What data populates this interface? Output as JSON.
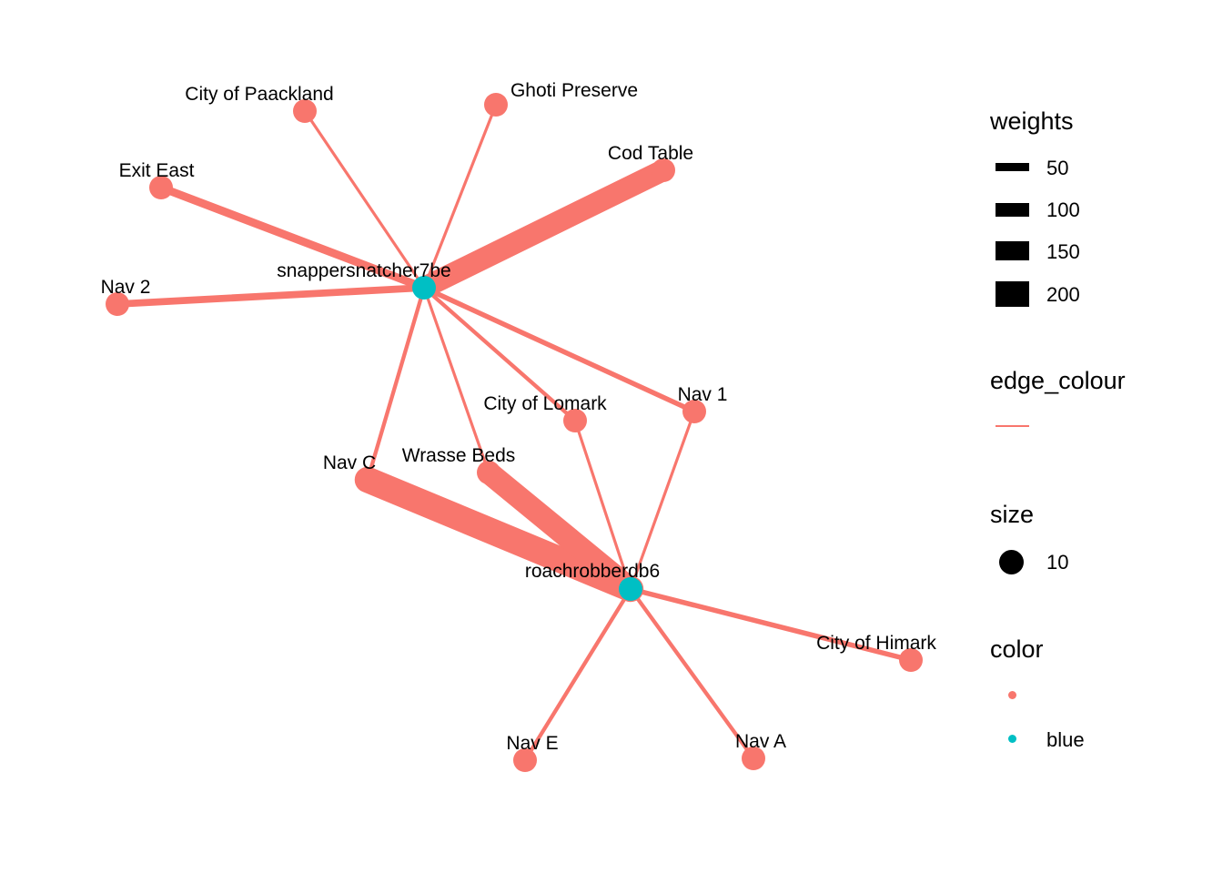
{
  "network": {
    "nodes": [
      {
        "id": "snappersnatcher7be",
        "label": "snappersnatcher7be",
        "color": "blue"
      },
      {
        "id": "roachrobberdb6",
        "label": "roachrobberdb6",
        "color": "blue"
      },
      {
        "id": "City of Paackland",
        "label": "City of Paackland",
        "color": ""
      },
      {
        "id": "Ghoti Preserve",
        "label": "Ghoti Preserve",
        "color": ""
      },
      {
        "id": "Exit East",
        "label": "Exit East",
        "color": ""
      },
      {
        "id": "Cod Table",
        "label": "Cod Table",
        "color": ""
      },
      {
        "id": "Nav 2",
        "label": "Nav 2",
        "color": ""
      },
      {
        "id": "City of Lomark",
        "label": "City of Lomark",
        "color": ""
      },
      {
        "id": "Nav 1",
        "label": "Nav 1",
        "color": ""
      },
      {
        "id": "Nav C",
        "label": "Nav C",
        "color": ""
      },
      {
        "id": "Wrasse Beds",
        "label": "Wrasse Beds",
        "color": ""
      },
      {
        "id": "City of Himark",
        "label": "City of Himark",
        "color": ""
      },
      {
        "id": "Nav E",
        "label": "Nav E",
        "color": ""
      },
      {
        "id": "Nav A",
        "label": "Nav A",
        "color": ""
      }
    ],
    "edges": [
      {
        "from": "snappersnatcher7be",
        "to": "City of Paackland",
        "weight": 10
      },
      {
        "from": "snappersnatcher7be",
        "to": "Ghoti Preserve",
        "weight": 10
      },
      {
        "from": "snappersnatcher7be",
        "to": "Exit East",
        "weight": 60
      },
      {
        "from": "snappersnatcher7be",
        "to": "Cod Table",
        "weight": 190
      },
      {
        "from": "snappersnatcher7be",
        "to": "Nav 2",
        "weight": 50
      },
      {
        "from": "snappersnatcher7be",
        "to": "City of Lomark",
        "weight": 20
      },
      {
        "from": "snappersnatcher7be",
        "to": "Nav 1",
        "weight": 30
      },
      {
        "from": "snappersnatcher7be",
        "to": "Nav C",
        "weight": 20
      },
      {
        "from": "snappersnatcher7be",
        "to": "Wrasse Beds",
        "weight": 10
      },
      {
        "from": "roachrobberdb6",
        "to": "Nav C",
        "weight": 230
      },
      {
        "from": "roachrobberdb6",
        "to": "Wrasse Beds",
        "weight": 200
      },
      {
        "from": "roachrobberdb6",
        "to": "City of Lomark",
        "weight": 10
      },
      {
        "from": "roachrobberdb6",
        "to": "Nav 1",
        "weight": 10
      },
      {
        "from": "roachrobberdb6",
        "to": "City of Himark",
        "weight": 30
      },
      {
        "from": "roachrobberdb6",
        "to": "Nav E",
        "weight": 20
      },
      {
        "from": "roachrobberdb6",
        "to": "Nav A",
        "weight": 20
      }
    ]
  },
  "legend": {
    "weights": {
      "title": "weights",
      "items": [
        {
          "label": "50",
          "value": 50
        },
        {
          "label": "100",
          "value": 100
        },
        {
          "label": "150",
          "value": 150
        },
        {
          "label": "200",
          "value": 200
        }
      ]
    },
    "edge_colour": {
      "title": "edge_colour",
      "swatch": "#F8766D"
    },
    "size": {
      "title": "size",
      "items": [
        {
          "label": "10"
        }
      ]
    },
    "color": {
      "title": "color",
      "items": [
        {
          "label": "",
          "color": "#F8766D"
        },
        {
          "label": "blue",
          "color": "#00BFC4"
        }
      ]
    }
  },
  "colors": {
    "edge": "#F8766D",
    "default_node": "#F8766D",
    "blue_node": "#00BFC4"
  }
}
